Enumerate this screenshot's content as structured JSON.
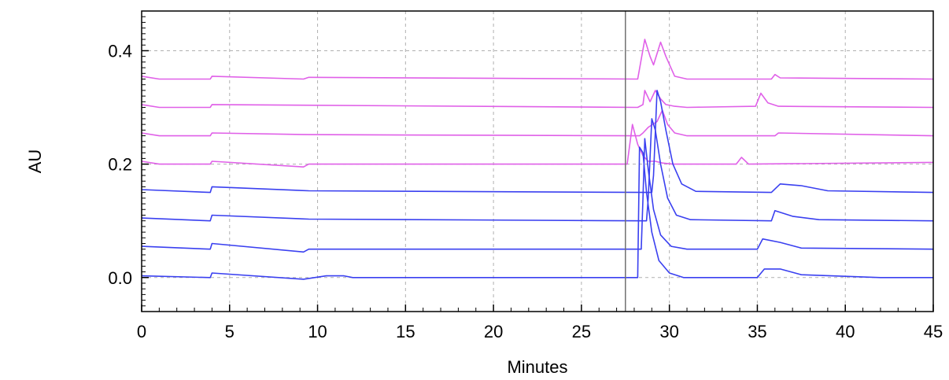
{
  "chart_data": {
    "type": "line",
    "title": "",
    "xlabel": "Minutes",
    "ylabel": "AU",
    "xlim": [
      0,
      45
    ],
    "ylim": [
      -0.06,
      0.47
    ],
    "x_ticks": [
      0,
      5,
      10,
      15,
      20,
      25,
      30,
      35,
      40,
      45
    ],
    "y_ticks": [
      0.0,
      0.2,
      0.4
    ],
    "y_tick_labels": [
      "0.0",
      "0.2",
      "0.4"
    ],
    "grid": true,
    "marker_line_x": 27.5,
    "colors": {
      "magenta": "#e060e8",
      "blue": "#3a40f0",
      "marker": "#707070",
      "grid": "#b0b0b0"
    },
    "series": [
      {
        "color": "magenta",
        "x": [
          0,
          1,
          3.9,
          4.0,
          9.2,
          9.5,
          28.2,
          28.6,
          28.9,
          29.1,
          29.5,
          29.8,
          30.3,
          31,
          35.8,
          36,
          36.3,
          45
        ],
        "y": [
          0.355,
          0.35,
          0.35,
          0.355,
          0.35,
          0.353,
          0.35,
          0.42,
          0.39,
          0.375,
          0.415,
          0.39,
          0.355,
          0.35,
          0.35,
          0.358,
          0.352,
          0.35
        ]
      },
      {
        "color": "magenta",
        "x": [
          0,
          1,
          3.9,
          4.0,
          28.2,
          28.5,
          28.6,
          28.9,
          29.2,
          29.5,
          29.8,
          30.3,
          31,
          34.9,
          35.2,
          35.6,
          36.2,
          45
        ],
        "y": [
          0.305,
          0.3,
          0.3,
          0.305,
          0.3,
          0.305,
          0.33,
          0.31,
          0.33,
          0.315,
          0.305,
          0.302,
          0.3,
          0.302,
          0.325,
          0.308,
          0.302,
          0.3
        ]
      },
      {
        "color": "magenta",
        "x": [
          0,
          1,
          3.9,
          4.0,
          9.5,
          28.3,
          28.5,
          28.8,
          29.3,
          29.6,
          29.9,
          30.3,
          31,
          36,
          36.2,
          45
        ],
        "y": [
          0.255,
          0.25,
          0.25,
          0.255,
          0.252,
          0.25,
          0.255,
          0.265,
          0.275,
          0.295,
          0.27,
          0.255,
          0.25,
          0.25,
          0.255,
          0.25
        ]
      },
      {
        "color": "magenta",
        "x": [
          0,
          1,
          3.9,
          4.0,
          9.2,
          9.5,
          27.6,
          27.9,
          28.2,
          28.5,
          28.8,
          29.2,
          29.6,
          30.2,
          31,
          33.8,
          34.1,
          34.5,
          45
        ],
        "y": [
          0.205,
          0.2,
          0.2,
          0.205,
          0.195,
          0.2,
          0.2,
          0.27,
          0.235,
          0.215,
          0.205,
          0.205,
          0.202,
          0.2,
          0.2,
          0.2,
          0.212,
          0.2,
          0.203
        ]
      },
      {
        "color": "blue",
        "x": [
          0,
          3.9,
          4.0,
          9.5,
          29.0,
          29.1,
          29.3,
          29.5,
          29.8,
          30.2,
          30.7,
          31.5,
          35.8,
          36.3,
          37.5,
          39,
          45
        ],
        "y": [
          0.155,
          0.15,
          0.16,
          0.153,
          0.15,
          0.18,
          0.33,
          0.31,
          0.26,
          0.2,
          0.165,
          0.152,
          0.15,
          0.165,
          0.162,
          0.153,
          0.15
        ]
      },
      {
        "color": "blue",
        "x": [
          0,
          3.9,
          4.0,
          9.5,
          28.7,
          28.8,
          29.0,
          29.2,
          29.5,
          29.9,
          30.4,
          31.2,
          35.8,
          36.0,
          37,
          38.5,
          45
        ],
        "y": [
          0.105,
          0.1,
          0.11,
          0.103,
          0.1,
          0.14,
          0.28,
          0.26,
          0.2,
          0.14,
          0.11,
          0.102,
          0.1,
          0.118,
          0.108,
          0.102,
          0.1
        ]
      },
      {
        "color": "blue",
        "x": [
          0,
          3.9,
          4.0,
          9.2,
          9.5,
          28.4,
          28.5,
          28.6,
          28.8,
          29.1,
          29.5,
          30.1,
          31,
          35.0,
          35.3,
          36.3,
          37.5,
          45
        ],
        "y": [
          0.055,
          0.05,
          0.06,
          0.045,
          0.05,
          0.05,
          0.14,
          0.245,
          0.19,
          0.12,
          0.075,
          0.055,
          0.05,
          0.05,
          0.068,
          0.062,
          0.052,
          0.05
        ]
      },
      {
        "color": "blue",
        "x": [
          0,
          3.9,
          4.0,
          9.2,
          10.5,
          11.5,
          12,
          28.2,
          28.3,
          28.5,
          28.7,
          29.0,
          29.4,
          30.0,
          30.8,
          35.0,
          35.4,
          36.3,
          37.5,
          42,
          45
        ],
        "y": [
          0.003,
          0.0,
          0.008,
          -0.003,
          0.003,
          0.003,
          0.0,
          0.0,
          0.23,
          0.22,
          0.15,
          0.08,
          0.03,
          0.008,
          0.0,
          0.0,
          0.015,
          0.015,
          0.005,
          0.0,
          0.0
        ]
      }
    ]
  }
}
